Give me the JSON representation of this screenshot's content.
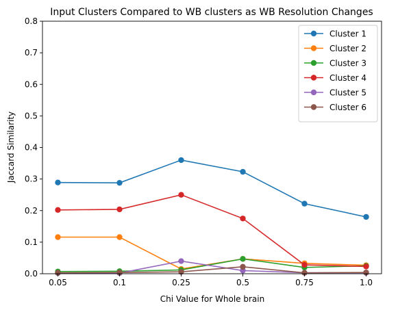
{
  "chart_data": {
    "type": "line",
    "title": "Input Clusters Compared to WB clusters as WB Resolution Changes",
    "xlabel": "Chi Value for Whole brain",
    "ylabel": "Jaccard Similarity",
    "categories": [
      "0.05",
      "0.1",
      "0.25",
      "0.5",
      "0.75",
      "1.0"
    ],
    "ylim": [
      0,
      0.8
    ],
    "yticks": [
      "0.0",
      "0.1",
      "0.2",
      "0.3",
      "0.4",
      "0.5",
      "0.6",
      "0.7",
      "0.8"
    ],
    "grid": false,
    "legend_position": "top-right",
    "series": [
      {
        "name": "Cluster 1",
        "color": "#1f77b4",
        "values": [
          0.289,
          0.288,
          0.36,
          0.323,
          0.222,
          0.18
        ]
      },
      {
        "name": "Cluster 2",
        "color": "#ff7f0e",
        "values": [
          0.116,
          0.116,
          0.015,
          0.047,
          0.033,
          0.027
        ]
      },
      {
        "name": "Cluster 3",
        "color": "#2ca02c",
        "values": [
          0.007,
          0.008,
          0.012,
          0.047,
          0.02,
          0.025
        ]
      },
      {
        "name": "Cluster 4",
        "color": "#d62728",
        "values": [
          0.202,
          0.204,
          0.25,
          0.175,
          0.028,
          0.023
        ]
      },
      {
        "name": "Cluster 5",
        "color": "#9467bd",
        "values": [
          0.002,
          0.002,
          0.04,
          0.01,
          0.003,
          0.003
        ]
      },
      {
        "name": "Cluster 6",
        "color": "#8c564b",
        "values": [
          0.003,
          0.004,
          0.006,
          0.022,
          0.003,
          0.004
        ]
      }
    ]
  }
}
